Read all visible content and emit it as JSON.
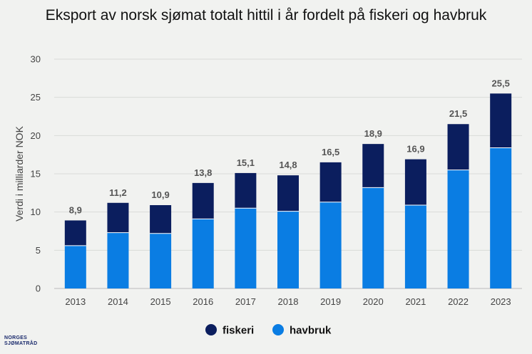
{
  "chart_data": {
    "type": "bar",
    "stacked": true,
    "title": "Eksport av norsk sjømat totalt hittil i år fordelt på fiskeri og havbruk",
    "ylabel": "Verdi i milliarder NOK",
    "xlabel": "",
    "ylim": [
      0,
      30
    ],
    "yticks": [
      "0",
      "5",
      "10",
      "15",
      "20",
      "25",
      "30"
    ],
    "grid": true,
    "legend_position": "bottom",
    "categories": [
      "2013",
      "2014",
      "2015",
      "2016",
      "2017",
      "2018",
      "2019",
      "2020",
      "2021",
      "2022",
      "2023"
    ],
    "series": [
      {
        "name": "havbruk",
        "color": "#0a7de3",
        "values": [
          5.6,
          7.3,
          7.2,
          9.1,
          10.5,
          10.1,
          11.3,
          13.2,
          10.9,
          15.5,
          18.4
        ]
      },
      {
        "name": "fiskeri",
        "color": "#0b1e5e",
        "values": [
          3.3,
          3.9,
          3.7,
          4.7,
          4.6,
          4.7,
          5.2,
          5.7,
          6.0,
          6.0,
          7.1
        ]
      }
    ],
    "totals": [
      "8,9",
      "11,2",
      "10,9",
      "13,8",
      "15,1",
      "14,8",
      "16,5",
      "18,9",
      "16,9",
      "21,5",
      "25,5"
    ]
  },
  "legend": [
    "fiskeri",
    "havbruk"
  ],
  "logo": {
    "line1": "NORGES",
    "line2": "SJØMATRÅD"
  }
}
